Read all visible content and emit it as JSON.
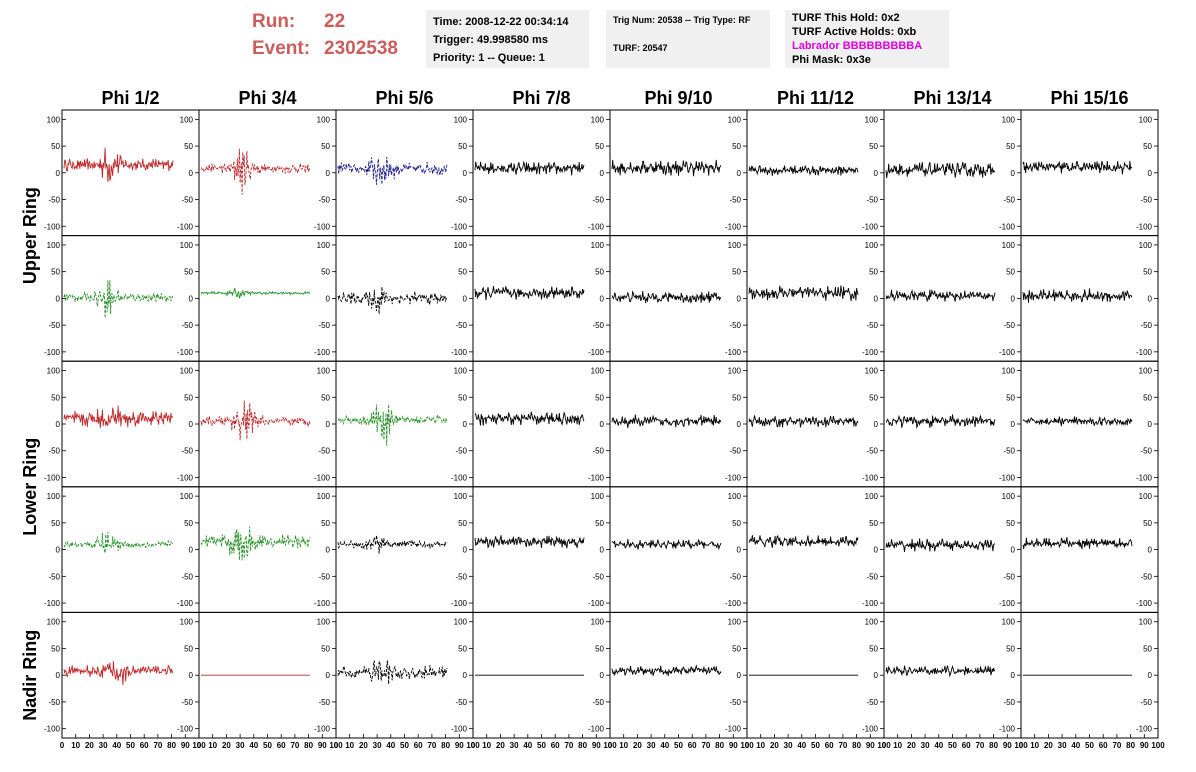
{
  "header": {
    "run_label": "Run:",
    "run_value": "22",
    "event_label": "Event:",
    "event_value": "2302538",
    "time": "Time: 2008-12-22 00:34:14",
    "trigger": "Trigger: 49.998580 ms",
    "priority": "Priority: 1 -- Queue: 1",
    "trig_num": "Trig Num: 20538 -- Trig Type: RF",
    "turf": "TURF: 20547",
    "turf_hold": "TURF This Hold: 0x2",
    "turf_active": "TURF Active Holds: 0xb",
    "labrador": "Labrador BBBBBBBBBA",
    "phi_mask": "Phi Mask: 0x3e",
    "labrador_color": "#e000e0",
    "run_color": "#cd5c5c"
  },
  "chart_data": {
    "type": "line",
    "columns": [
      "Phi 1/2",
      "Phi 3/4",
      "Phi 5/6",
      "Phi 7/8",
      "Phi 9/10",
      "Phi 11/12",
      "Phi 13/14",
      "Phi 15/16"
    ],
    "rings": [
      {
        "name": "Upper Ring",
        "rows": 2
      },
      {
        "name": "Lower Ring",
        "rows": 2
      },
      {
        "name": "Nadir Ring",
        "rows": 1
      }
    ],
    "ylim": [
      -110,
      110
    ],
    "xlim": [
      0,
      100
    ],
    "y_ticks": [
      100,
      50,
      0,
      -50,
      -100
    ],
    "x_ticks": [
      0,
      10,
      20,
      30,
      40,
      50,
      60,
      70,
      80,
      90,
      100
    ],
    "colors": {
      "red": "#c0282a",
      "green": "#2a922a",
      "blue": "#1c1c8e",
      "black": "#000000"
    },
    "panels": [
      [
        {
          "color": "red",
          "dash": false,
          "amp": 14,
          "burst": 28,
          "center": 42,
          "offset": 15,
          "flat": false
        },
        {
          "color": "red",
          "dash": true,
          "amp": 10,
          "burst": 45,
          "center": 38,
          "offset": 8,
          "flat": false
        },
        {
          "color": "blue",
          "dash": true,
          "amp": 14,
          "burst": 38,
          "center": 40,
          "offset": 8,
          "flat": false
        },
        {
          "color": "black",
          "dash": false,
          "amp": 14,
          "burst": 0,
          "center": 50,
          "offset": 8,
          "flat": false
        },
        {
          "color": "black",
          "dash": false,
          "amp": 17,
          "burst": 0,
          "center": 50,
          "offset": 10,
          "flat": false
        },
        {
          "color": "black",
          "dash": false,
          "amp": 11,
          "burst": 0,
          "center": 50,
          "offset": 5,
          "flat": false
        },
        {
          "color": "black",
          "dash": false,
          "amp": 16,
          "burst": 0,
          "center": 50,
          "offset": 5,
          "flat": false
        },
        {
          "color": "black",
          "dash": false,
          "amp": 14,
          "burst": 0,
          "center": 50,
          "offset": 10,
          "flat": false
        }
      ],
      [
        {
          "color": "green",
          "dash": true,
          "amp": 10,
          "burst": 35,
          "center": 40,
          "offset": 2,
          "flat": false
        },
        {
          "color": "green",
          "dash": false,
          "amp": 3,
          "burst": 8,
          "center": 35,
          "offset": 10,
          "flat": false
        },
        {
          "color": "black",
          "dash": true,
          "amp": 14,
          "burst": 20,
          "center": 40,
          "offset": 0,
          "flat": false
        },
        {
          "color": "black",
          "dash": false,
          "amp": 14,
          "burst": 0,
          "center": 50,
          "offset": 10,
          "flat": false
        },
        {
          "color": "black",
          "dash": false,
          "amp": 13,
          "burst": 0,
          "center": 50,
          "offset": 2,
          "flat": false
        },
        {
          "color": "black",
          "dash": false,
          "amp": 16,
          "burst": 0,
          "center": 50,
          "offset": 10,
          "flat": false
        },
        {
          "color": "black",
          "dash": false,
          "amp": 12,
          "burst": 0,
          "center": 50,
          "offset": 5,
          "flat": false
        },
        {
          "color": "black",
          "dash": false,
          "amp": 14,
          "burst": 0,
          "center": 50,
          "offset": 5,
          "flat": false
        }
      ],
      [
        {
          "color": "red",
          "dash": false,
          "amp": 18,
          "burst": 15,
          "center": 45,
          "offset": 10,
          "flat": false
        },
        {
          "color": "red",
          "dash": true,
          "amp": 10,
          "burst": 45,
          "center": 40,
          "offset": 5,
          "flat": false
        },
        {
          "color": "green",
          "dash": true,
          "amp": 10,
          "burst": 45,
          "center": 42,
          "offset": 8,
          "flat": false
        },
        {
          "color": "black",
          "dash": false,
          "amp": 14,
          "burst": 0,
          "center": 50,
          "offset": 10,
          "flat": false
        },
        {
          "color": "black",
          "dash": false,
          "amp": 13,
          "burst": 0,
          "center": 50,
          "offset": 5,
          "flat": false
        },
        {
          "color": "black",
          "dash": false,
          "amp": 12,
          "burst": 0,
          "center": 50,
          "offset": 5,
          "flat": false
        },
        {
          "color": "black",
          "dash": false,
          "amp": 13,
          "burst": 0,
          "center": 50,
          "offset": 5,
          "flat": false
        },
        {
          "color": "black",
          "dash": false,
          "amp": 10,
          "burst": 0,
          "center": 50,
          "offset": 5,
          "flat": false
        }
      ],
      [
        {
          "color": "green",
          "dash": true,
          "amp": 8,
          "burst": 25,
          "center": 40,
          "offset": 10,
          "flat": false
        },
        {
          "color": "green",
          "dash": true,
          "amp": 14,
          "burst": 50,
          "center": 36,
          "offset": 15,
          "flat": false
        },
        {
          "color": "black",
          "dash": true,
          "amp": 8,
          "burst": 12,
          "center": 35,
          "offset": 10,
          "flat": false
        },
        {
          "color": "black",
          "dash": false,
          "amp": 13,
          "burst": 0,
          "center": 50,
          "offset": 15,
          "flat": false
        },
        {
          "color": "black",
          "dash": false,
          "amp": 10,
          "burst": 0,
          "center": 50,
          "offset": 10,
          "flat": false
        },
        {
          "color": "black",
          "dash": false,
          "amp": 13,
          "burst": 0,
          "center": 50,
          "offset": 15,
          "flat": false
        },
        {
          "color": "black",
          "dash": false,
          "amp": 13,
          "burst": 0,
          "center": 50,
          "offset": 8,
          "flat": false
        },
        {
          "color": "black",
          "dash": false,
          "amp": 12,
          "burst": 0,
          "center": 50,
          "offset": 12,
          "flat": false
        }
      ],
      [
        {
          "color": "red",
          "dash": false,
          "amp": 12,
          "burst": 30,
          "center": 48,
          "offset": 8,
          "flat": false
        },
        {
          "color": "red",
          "dash": false,
          "amp": 0,
          "burst": 0,
          "center": 50,
          "offset": 0,
          "flat": true
        },
        {
          "color": "black",
          "dash": true,
          "amp": 14,
          "burst": 30,
          "center": 42,
          "offset": 5,
          "flat": false
        },
        {
          "color": "black",
          "dash": false,
          "amp": 0,
          "burst": 0,
          "center": 50,
          "offset": 0,
          "flat": true
        },
        {
          "color": "black",
          "dash": false,
          "amp": 10,
          "burst": 0,
          "center": 50,
          "offset": 8,
          "flat": false
        },
        {
          "color": "black",
          "dash": false,
          "amp": 0,
          "burst": 0,
          "center": 50,
          "offset": 0,
          "flat": true
        },
        {
          "color": "black",
          "dash": false,
          "amp": 10,
          "burst": 0,
          "center": 50,
          "offset": 8,
          "flat": false
        },
        {
          "color": "black",
          "dash": false,
          "amp": 0,
          "burst": 0,
          "center": 50,
          "offset": 0,
          "flat": true
        }
      ]
    ]
  }
}
